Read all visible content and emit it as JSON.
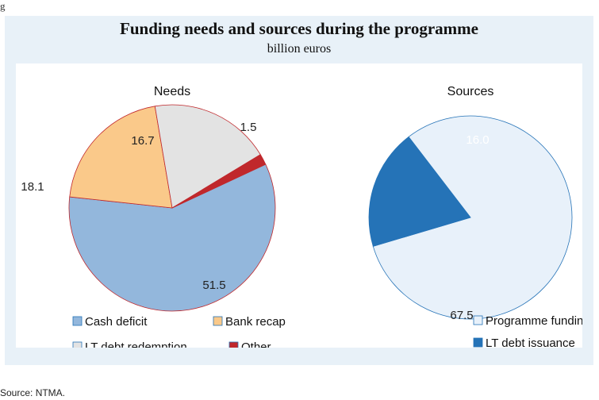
{
  "figure_label": "g",
  "title": "Funding needs and sources during the programme",
  "subtitle": "billion euros",
  "source": "Source: NTMA.",
  "chart_data": [
    {
      "type": "pie",
      "title": "Needs",
      "legend_position": "bottom",
      "slices": [
        {
          "name": "Cash deficit",
          "value": 51.5,
          "label": "51.5",
          "color": "#93b7dc"
        },
        {
          "name": "Bank recap",
          "value": 18.1,
          "label": "18.1",
          "color": "#fac98a"
        },
        {
          "name": "LT debt redemption",
          "value": 16.7,
          "label": "16.7",
          "color": "#e3e3e3"
        },
        {
          "name": "Other",
          "value": 1.5,
          "label": "1.5",
          "color": "#c0282c"
        }
      ]
    },
    {
      "type": "pie",
      "title": "Sources",
      "legend_position": "bottom",
      "slices": [
        {
          "name": "Programme funding",
          "value": 67.5,
          "label": "67.5",
          "color": "#e8f1fa"
        },
        {
          "name": "LT debt issuance",
          "value": 16.0,
          "label": "16.0",
          "color": "#2573b7"
        }
      ]
    }
  ]
}
